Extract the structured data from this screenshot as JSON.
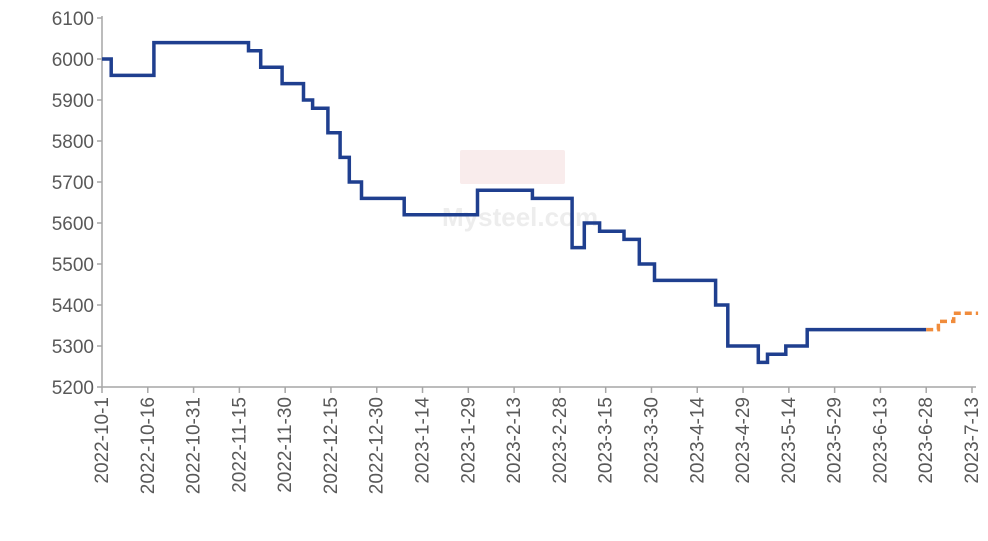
{
  "chart_data": {
    "type": "line",
    "title": "",
    "xlabel": "",
    "ylabel": "",
    "ylim": [
      5200,
      6100
    ],
    "y_ticks": [
      5200,
      5300,
      5400,
      5500,
      5600,
      5700,
      5800,
      5900,
      6000,
      6100
    ],
    "x_range": [
      "2022-10-01",
      "2023-07-13"
    ],
    "x_ticks": [
      "2022-10-1",
      "2022-10-16",
      "2022-10-31",
      "2022-11-15",
      "2022-11-30",
      "2022-12-15",
      "2022-12-30",
      "2023-1-14",
      "2023-1-29",
      "2023-2-13",
      "2023-2-28",
      "2023-3-15",
      "2023-3-30",
      "2023-4-14",
      "2023-4-29",
      "2023-5-14",
      "2023-5-29",
      "2023-6-13",
      "2023-6-28",
      "2023-7-13"
    ],
    "grid": false,
    "legend": "none",
    "watermark": "Mysteel.com",
    "series": [
      {
        "color": "#1f3f8f",
        "style": "solid",
        "step": true,
        "points": [
          [
            "2022-10-01",
            6000
          ],
          [
            "2022-10-04",
            5960
          ],
          [
            "2022-10-18",
            6040
          ],
          [
            "2022-11-18",
            6020
          ],
          [
            "2022-11-22",
            5980
          ],
          [
            "2022-11-29",
            5940
          ],
          [
            "2022-12-06",
            5900
          ],
          [
            "2022-12-09",
            5880
          ],
          [
            "2022-12-14",
            5820
          ],
          [
            "2022-12-18",
            5760
          ],
          [
            "2022-12-21",
            5700
          ],
          [
            "2022-12-25",
            5660
          ],
          [
            "2023-01-08",
            5620
          ],
          [
            "2023-02-01",
            5680
          ],
          [
            "2023-02-19",
            5660
          ],
          [
            "2023-03-04",
            5540
          ],
          [
            "2023-03-08",
            5600
          ],
          [
            "2023-03-13",
            5580
          ],
          [
            "2023-03-21",
            5560
          ],
          [
            "2023-03-26",
            5500
          ],
          [
            "2023-03-31",
            5460
          ],
          [
            "2023-04-20",
            5400
          ],
          [
            "2023-04-24",
            5300
          ],
          [
            "2023-05-04",
            5260
          ],
          [
            "2023-05-07",
            5280
          ],
          [
            "2023-05-13",
            5300
          ],
          [
            "2023-05-20",
            5340
          ],
          [
            "2023-06-28",
            5340
          ]
        ]
      },
      {
        "color": "#f08c3c",
        "style": "dashed",
        "step": true,
        "points": [
          [
            "2023-06-28",
            5340
          ],
          [
            "2023-07-02",
            5360
          ],
          [
            "2023-07-07",
            5380
          ],
          [
            "2023-07-15",
            5380
          ]
        ]
      }
    ]
  }
}
